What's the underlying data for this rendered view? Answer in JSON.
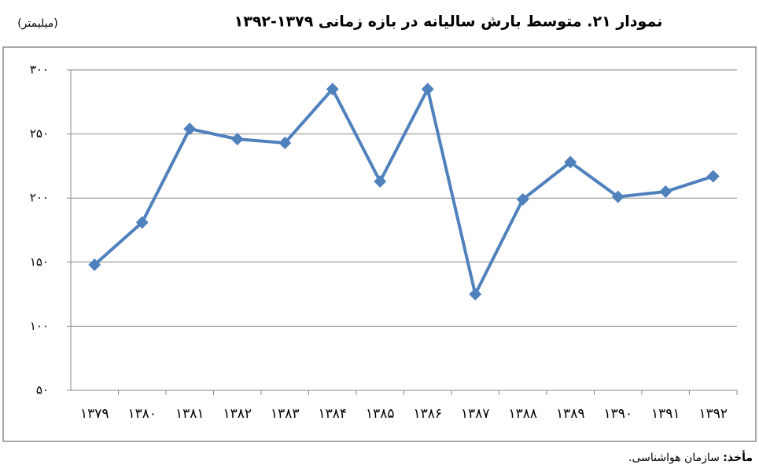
{
  "chart_data": {
    "type": "line",
    "title": "نمودار ۲۱. متوسط بارش سالیانه در بازه زمانی ۱۳۷۹-۱۳۹۲",
    "unit_label": "(میلیمتر)",
    "categories": [
      "۱۳۷۹",
      "۱۳۸۰",
      "۱۳۸۱",
      "۱۳۸۲",
      "۱۳۸۳",
      "۱۳۸۴",
      "۱۳۸۵",
      "۱۳۸۶",
      "۱۳۸۷",
      "۱۳۸۸",
      "۱۳۸۹",
      "۱۳۹۰",
      "۱۳۹۱",
      "۱۳۹۲"
    ],
    "series": [
      {
        "color": "#4f81bd",
        "values": [
          148,
          181,
          254,
          246,
          243,
          285,
          213,
          285,
          125,
          199,
          228,
          201,
          205,
          217
        ]
      }
    ],
    "ylim": [
      50,
      300
    ],
    "yticks": [
      {
        "value": 50,
        "label": "۵۰"
      },
      {
        "value": 100,
        "label": "۱۰۰"
      },
      {
        "value": 150,
        "label": "۱۵۰"
      },
      {
        "value": 200,
        "label": "۲۰۰"
      },
      {
        "value": 250,
        "label": "۲۵۰"
      },
      {
        "value": 300,
        "label": "۳۰۰"
      }
    ],
    "grid": true,
    "source_label": "مأخذ:",
    "source": "سازمان هواشناسی."
  }
}
